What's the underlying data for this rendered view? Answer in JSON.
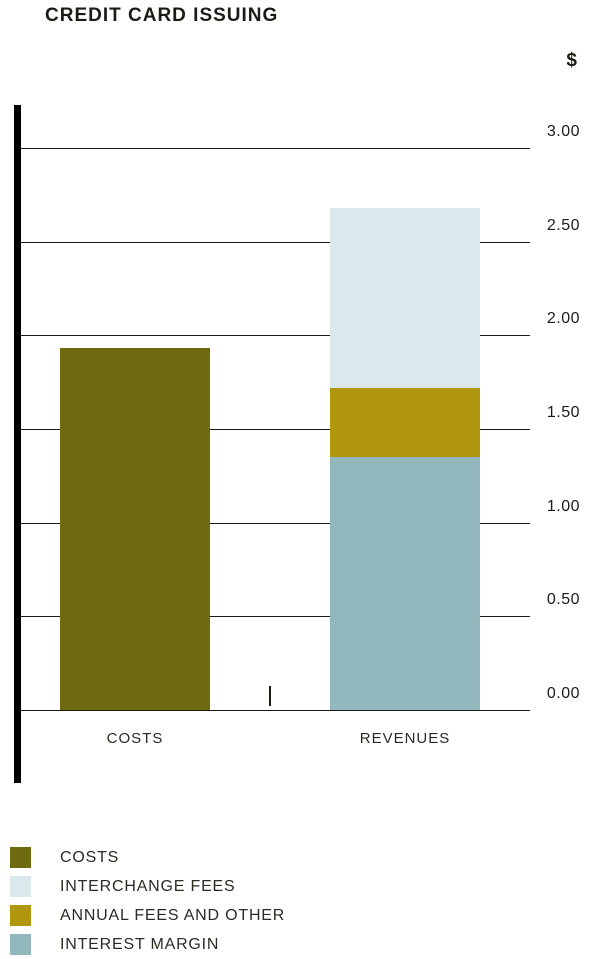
{
  "chart_data": {
    "type": "bar",
    "stacked": true,
    "title": "CREDIT CARD ISSUING",
    "ylabel": "$",
    "xlabel": "",
    "categories": [
      "COSTS",
      "REVENUES"
    ],
    "series": [
      {
        "name": "COSTS",
        "color": "#6e6a10",
        "values": [
          1.93,
          0
        ]
      },
      {
        "name": "INTEREST MARGIN",
        "color": "#92b8bd",
        "values": [
          0,
          1.35
        ]
      },
      {
        "name": "ANNUAL FEES AND OTHER",
        "color": "#b1970e",
        "values": [
          0,
          0.37
        ]
      },
      {
        "name": "INTERCHANGE FEES",
        "color": "#dbe8ec",
        "values": [
          0,
          0.96
        ]
      }
    ],
    "ylim": [
      0,
      3
    ],
    "yticks": [
      "0.00",
      "0.50",
      "1.00",
      "1.50",
      "2.00",
      "2.50",
      "3.00"
    ],
    "grid": true,
    "legend_position": "bottom-left",
    "legend": [
      {
        "label": "COSTS",
        "color": "#6e6a10"
      },
      {
        "label": "INTERCHANGE FEES",
        "color": "#dbe8ec"
      },
      {
        "label": "ANNUAL FEES AND OTHER",
        "color": "#b1970e"
      },
      {
        "label": "INTEREST MARGIN",
        "color": "#92b8bd"
      }
    ]
  }
}
